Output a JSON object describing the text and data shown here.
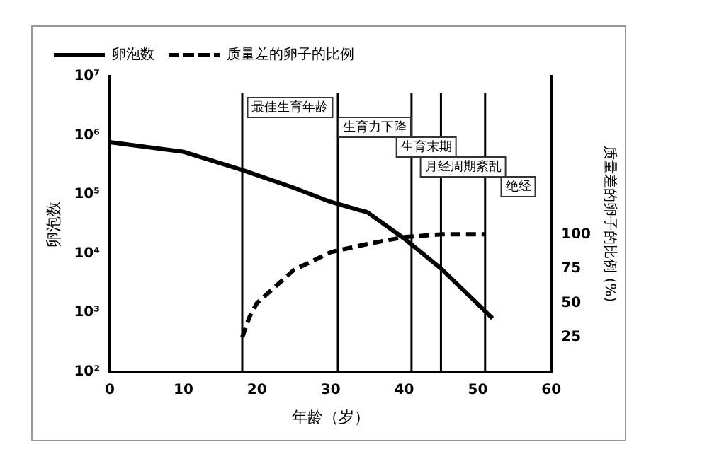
{
  "chart_data": {
    "type": "line",
    "xlabel": "年龄（岁）",
    "ylabel": "卵泡数",
    "y2label": "质量差的卵子的比例 (%)",
    "xlim": [
      0,
      60
    ],
    "xticks": [
      0,
      10,
      20,
      30,
      40,
      50,
      60
    ],
    "log": "y",
    "ylim": [
      100,
      10000000
    ],
    "yticks": [
      {
        "value": 100,
        "label": "10²"
      },
      {
        "value": 1000,
        "label": "10³"
      },
      {
        "value": 10000,
        "label": "10⁴"
      },
      {
        "value": 100000,
        "label": "10⁵"
      },
      {
        "value": 1000000,
        "label": "10⁶"
      },
      {
        "value": 10000000,
        "label": "10⁷"
      }
    ],
    "y2lim": [
      0,
      215
    ],
    "y2ticks": [
      25,
      50,
      75,
      100
    ],
    "series": [
      {
        "name": "卵泡数",
        "color": "#000000",
        "line_style": "solid",
        "x": [
          0,
          10,
          18,
          25,
          30,
          35,
          40,
          45,
          50,
          52
        ],
        "values": [
          770000,
          530000,
          260000,
          130000,
          75000,
          50000,
          18000,
          5600,
          1400,
          800
        ]
      },
      {
        "name": "质量差的卵子的比例",
        "color": "#000000",
        "line_style": "dashed",
        "axis": "y2",
        "x": [
          18,
          19,
          20,
          25,
          30,
          35,
          40,
          45,
          51
        ],
        "values": [
          25,
          40,
          50,
          74,
          87,
          93,
          98,
          100,
          100
        ]
      }
    ],
    "ref_lines": [
      {
        "axis": "x",
        "value": 18,
        "color": "#000000"
      },
      {
        "axis": "x",
        "value": 31,
        "color": "#000000"
      },
      {
        "axis": "x",
        "value": 41,
        "color": "#000000"
      },
      {
        "axis": "x",
        "value": 45,
        "color": "#000000"
      },
      {
        "axis": "x",
        "value": 51,
        "color": "#000000"
      }
    ],
    "annotations": [
      "最佳生育年龄",
      "生育力下降",
      "生育末期",
      "月经周期紊乱",
      "绝经"
    ],
    "marker": "none",
    "grid": false,
    "legend": "top left"
  }
}
